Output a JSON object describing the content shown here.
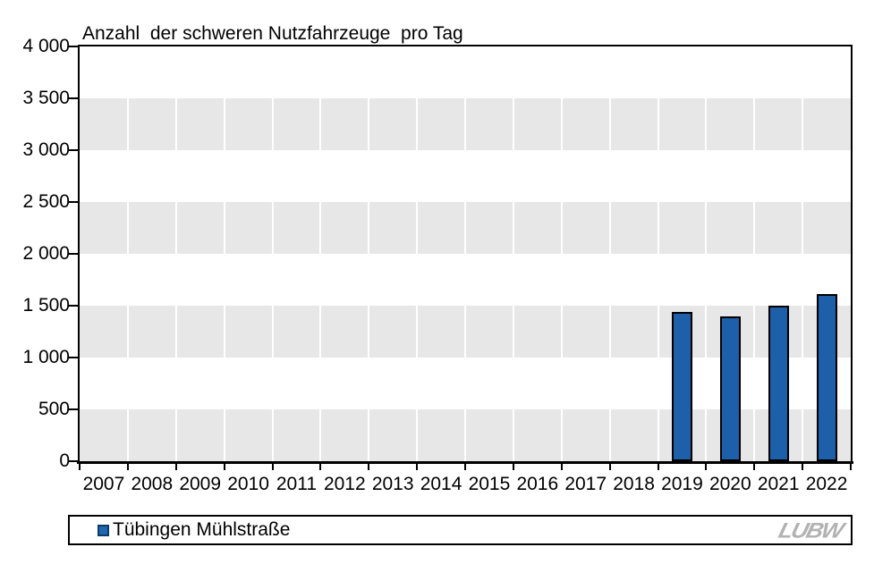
{
  "title": "Anzahl  der schweren Nutzfahrzeuge  pro Tag",
  "legend": {
    "label": "Tübingen Mühlstraße"
  },
  "logo": {
    "text": "LUBW"
  },
  "colors": {
    "bar_fill": "#1d5fa9",
    "bar_border": "#000000",
    "band_gray": "#e7e7e7",
    "gridline_white": "#ffffff",
    "axis_black": "#000000",
    "legend_swatch_fill": "#2067b2",
    "legend_swatch_border": "#0d3a66",
    "logo_gray": "#b2b2b2"
  },
  "chart_data": {
    "type": "bar",
    "title": "Anzahl der schweren Nutzfahrzeuge pro Tag",
    "categories": [
      "2007",
      "2008",
      "2009",
      "2010",
      "2011",
      "2012",
      "2013",
      "2014",
      "2015",
      "2016",
      "2017",
      "2018",
      "2019",
      "2020",
      "2021",
      "2022"
    ],
    "series": [
      {
        "name": "Tübingen Mühlstraße",
        "color": "#1d5fa9",
        "values": [
          null,
          null,
          null,
          null,
          null,
          null,
          null,
          null,
          null,
          null,
          null,
          null,
          1440,
          1400,
          1500,
          1610
        ]
      }
    ],
    "xlabel": "",
    "ylabel": "",
    "ylim": [
      0,
      4000
    ],
    "ytick_step": 500,
    "ytick_labels": [
      "0",
      "500",
      "1 000",
      "1 500",
      "2 000",
      "2 500",
      "3 000",
      "3 500",
      "4 000"
    ],
    "grid": "alternating horizontal gray bands between y-ticks; white vertical gridlines at category boundaries",
    "legend_position": "bottom-left"
  }
}
